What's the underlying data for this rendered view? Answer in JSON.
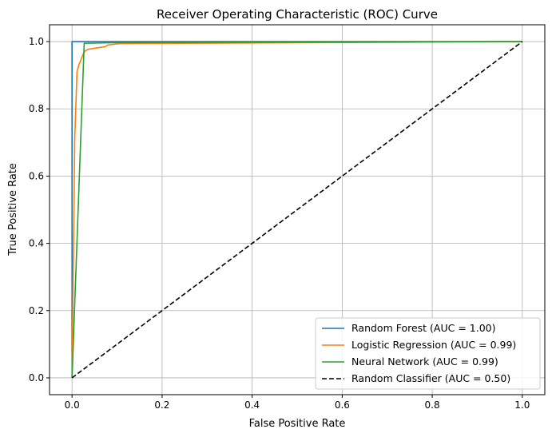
{
  "chart_data": {
    "type": "line",
    "title": "Receiver Operating Characteristic (ROC) Curve",
    "xlabel": "False Positive Rate",
    "ylabel": "True Positive Rate",
    "xlim": [
      -0.05,
      1.05
    ],
    "ylim": [
      -0.05,
      1.05
    ],
    "xticks": [
      "0.0",
      "0.2",
      "0.4",
      "0.6",
      "0.8",
      "1.0"
    ],
    "yticks": [
      "0.0",
      "0.2",
      "0.4",
      "0.6",
      "0.8",
      "1.0"
    ],
    "grid": true,
    "legend_position": "bottom-right",
    "series": [
      {
        "name": "Random Forest (AUC = 1.00)",
        "color": "#1f77b4",
        "dash": false,
        "x": [
          0,
          0,
          1
        ],
        "y": [
          0,
          1,
          1
        ]
      },
      {
        "name": "Logistic Regression (AUC = 0.99)",
        "color": "#ff7f0e",
        "dash": false,
        "x": [
          0,
          0.006,
          0.011,
          0.015,
          0.021,
          0.027,
          0.035,
          0.05,
          0.074,
          0.08,
          0.106,
          1
        ],
        "y": [
          0,
          0.71,
          0.91,
          0.93,
          0.95,
          0.97,
          0.977,
          0.98,
          0.985,
          0.99,
          0.994,
          1
        ]
      },
      {
        "name": "Neural Network (AUC = 0.99)",
        "color": "#2ca02c",
        "dash": false,
        "x": [
          0,
          0.027,
          0.11,
          1
        ],
        "y": [
          0,
          0.995,
          0.997,
          1
        ]
      },
      {
        "name": "Random Classifier (AUC = 0.50)",
        "color": "#000000",
        "dash": true,
        "x": [
          0,
          1
        ],
        "y": [
          0,
          1
        ]
      }
    ]
  }
}
